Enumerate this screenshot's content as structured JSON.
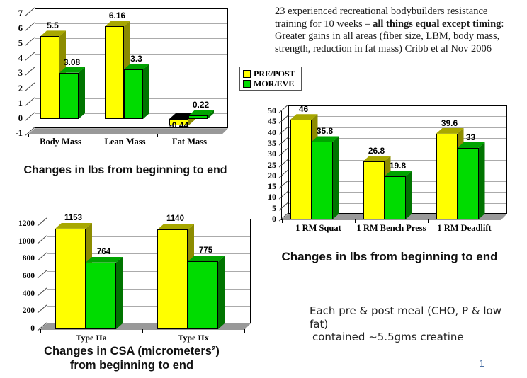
{
  "page": {
    "number": "1"
  },
  "study_note": {
    "lines": [
      {
        "pre": "23 experienced recreational bodybuilders resistance",
        "emph": "",
        "post": ""
      },
      {
        "pre": "training for 10 weeks – ",
        "emph": "all things equal except timing",
        "post": ":"
      },
      {
        "pre": "Greater gains in all areas (fiber size, LBM, body mass,",
        "emph": "",
        "post": ""
      },
      {
        "pre": "strength, reduction in fat mass) Cribb et al Nov 2006",
        "emph": "",
        "post": ""
      }
    ]
  },
  "legend": {
    "items": [
      {
        "label": "PRE/POST",
        "color": "#FFFF00"
      },
      {
        "label": "MOR/EVE",
        "color": "#00DC00"
      }
    ]
  },
  "colors": {
    "series": [
      {
        "name": "PRE/POST",
        "front": "#FFFF00",
        "top": "#A8A800",
        "side": "#8C8C00"
      },
      {
        "name": "MOR/EVE",
        "front": "#00DC00",
        "top": "#00A400",
        "side": "#007400"
      }
    ],
    "negative_top": "#000000",
    "floor": "#999999",
    "grid": "#ABABAB",
    "axis": "#000000"
  },
  "meal_note": {
    "line1": "Each pre & post meal (CHO, P & low fat)",
    "line2": "contained ~5.5gms creatine"
  },
  "chart_data": [
    {
      "id": "mass-change",
      "type": "bar",
      "title": "Changes in lbs from beginning to end",
      "categories": [
        "Body Mass",
        "Lean Mass",
        "Fat Mass"
      ],
      "series": [
        {
          "name": "PRE/POST",
          "values": [
            5.5,
            6.16,
            -0.44
          ]
        },
        {
          "name": "MOR/EVE",
          "values": [
            3.08,
            3.3,
            0.22
          ]
        }
      ],
      "ylim": [
        -1,
        7
      ],
      "ytick_step": 1,
      "grid": true,
      "style": "3d-clustered-column"
    },
    {
      "id": "strength-change",
      "type": "bar",
      "title": "Changes in lbs from beginning to end",
      "categories": [
        "1 RM Squat",
        "1 RM Bench Press",
        "1 RM Deadlift"
      ],
      "series": [
        {
          "name": "PRE/POST",
          "values": [
            46,
            26.8,
            39.6
          ]
        },
        {
          "name": "MOR/EVE",
          "values": [
            35.8,
            19.8,
            33
          ]
        }
      ],
      "ylim": [
        0,
        50
      ],
      "ytick_step": 5,
      "grid": true,
      "style": "3d-clustered-column"
    },
    {
      "id": "csa-change",
      "type": "bar",
      "title": "Changes in CSA (micrometers²) from beginning to end",
      "title_line1": "Changes in CSA (micrometers²)",
      "title_line2": "from beginning to end",
      "categories": [
        "Type IIa",
        "Type IIx"
      ],
      "series": [
        {
          "name": "PRE/POST",
          "values": [
            1153,
            1140
          ]
        },
        {
          "name": "MOR/EVE",
          "values": [
            764,
            775
          ]
        }
      ],
      "ylim": [
        0,
        1200
      ],
      "ytick_step": 200,
      "grid": true,
      "style": "3d-clustered-column"
    }
  ]
}
